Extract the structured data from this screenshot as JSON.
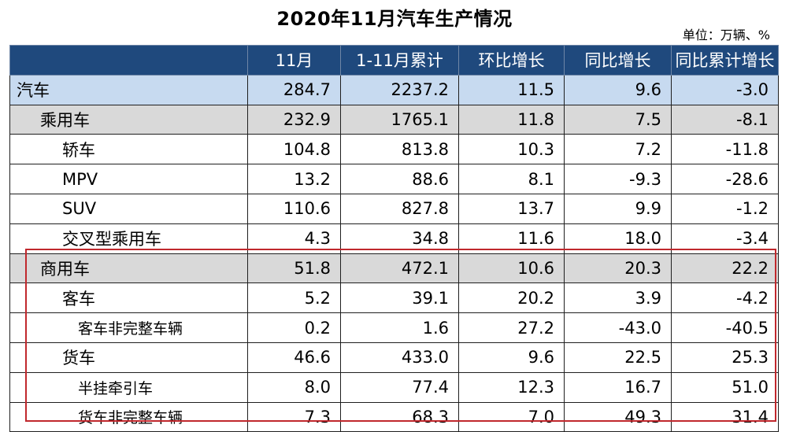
{
  "title": "2020年11月汽车生产情况",
  "unit": "单位：万辆、%",
  "table": {
    "headers": [
      "",
      "11月",
      "1-11月累计",
      "环比增长",
      "同比增长",
      "同比累计增长"
    ],
    "rows": [
      {
        "label": "汽车",
        "level": 0,
        "values": [
          "284.7",
          "2237.2",
          "11.5",
          "9.6",
          "-3.0"
        ]
      },
      {
        "label": "乘用车",
        "level": 1,
        "values": [
          "232.9",
          "1765.1",
          "11.8",
          "7.5",
          "-8.1"
        ]
      },
      {
        "label": "轿车",
        "level": 2,
        "values": [
          "104.8",
          "813.8",
          "10.3",
          "7.2",
          "-11.8"
        ]
      },
      {
        "label": "MPV",
        "level": 2,
        "values": [
          "13.2",
          "88.6",
          "8.1",
          "-9.3",
          "-28.6"
        ]
      },
      {
        "label": "SUV",
        "level": 2,
        "values": [
          "110.6",
          "827.8",
          "13.7",
          "9.9",
          "-1.2"
        ]
      },
      {
        "label": "交叉型乘用车",
        "level": 2,
        "values": [
          "4.3",
          "34.8",
          "11.6",
          "18.0",
          "-3.4"
        ]
      },
      {
        "label": "商用车",
        "level": 1,
        "values": [
          "51.8",
          "472.1",
          "10.6",
          "20.3",
          "22.2"
        ]
      },
      {
        "label": "客车",
        "level": 2,
        "values": [
          "5.2",
          "39.1",
          "20.2",
          "3.9",
          "-4.2"
        ]
      },
      {
        "label": "客车非完整车辆",
        "level": 3,
        "values": [
          "0.2",
          "1.6",
          "27.2",
          "-43.0",
          "-40.5"
        ]
      },
      {
        "label": "货车",
        "level": 2,
        "values": [
          "46.6",
          "433.0",
          "9.6",
          "22.5",
          "25.3"
        ]
      },
      {
        "label": "半挂牵引车",
        "level": 3,
        "values": [
          "8.0",
          "77.4",
          "12.3",
          "16.7",
          "51.0"
        ]
      },
      {
        "label": "货车非完整车辆",
        "level": 3,
        "values": [
          "7.3",
          "68.3",
          "7.0",
          "49.3",
          "31.4"
        ]
      }
    ]
  },
  "colors": {
    "header_bg": "#1f497d",
    "row_level0_bg": "#c7daf0",
    "row_level1_bg": "#d9d9d9",
    "highlight_border": "#c0282d"
  }
}
